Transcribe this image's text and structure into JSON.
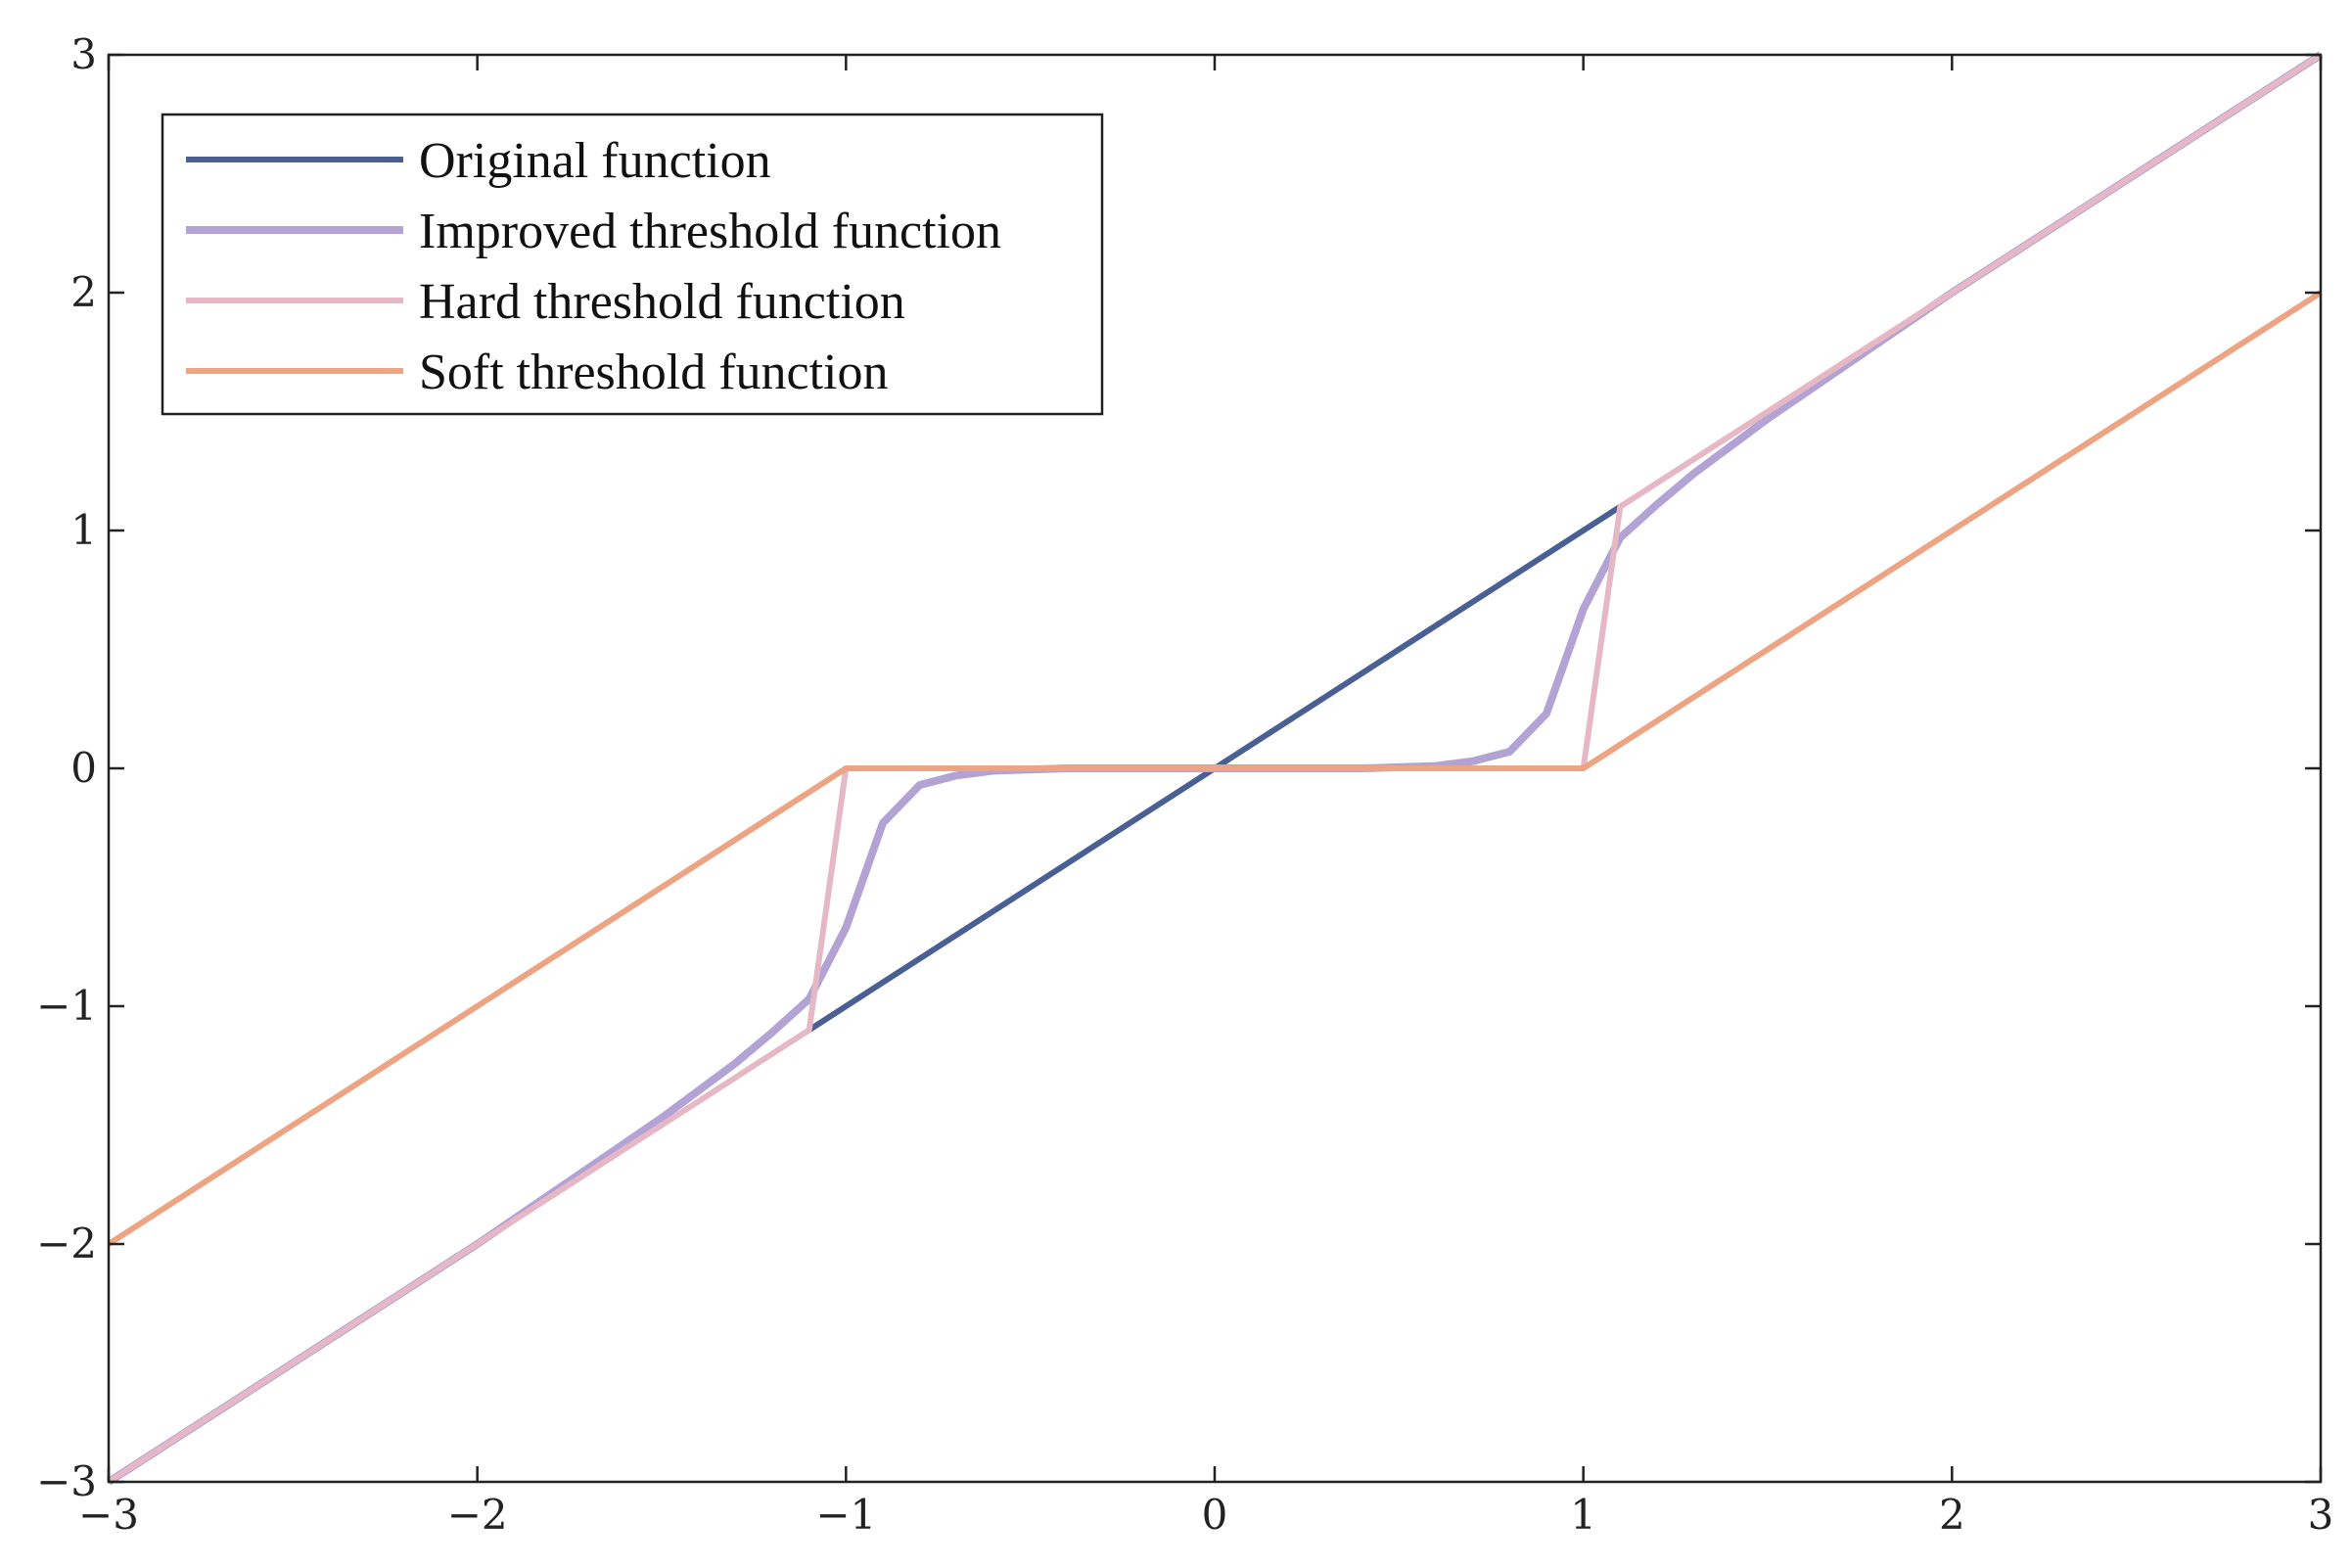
{
  "chart_data": {
    "type": "line",
    "title": "",
    "xlabel": "",
    "ylabel": "",
    "xlim": [
      -3,
      3
    ],
    "ylim": [
      -3,
      3
    ],
    "grid": false,
    "legend_placement": "top-left",
    "x_ticks": [
      {
        "value": -3,
        "label": "−3"
      },
      {
        "value": -2,
        "label": "−2"
      },
      {
        "value": -1,
        "label": "−1"
      },
      {
        "value": 0,
        "label": "0"
      },
      {
        "value": 1,
        "label": "1"
      },
      {
        "value": 2,
        "label": "2"
      },
      {
        "value": 3,
        "label": "3"
      }
    ],
    "y_ticks": [
      {
        "value": -3,
        "label": "−3"
      },
      {
        "value": -2,
        "label": "−2"
      },
      {
        "value": -1,
        "label": "−1"
      },
      {
        "value": 0,
        "label": "0"
      },
      {
        "value": 1,
        "label": "1"
      },
      {
        "value": 2,
        "label": "2"
      },
      {
        "value": 3,
        "label": "3"
      }
    ],
    "series": [
      {
        "name": "Original function",
        "color": "#4a5f93",
        "points": [
          [
            -1.1,
            -1.1
          ],
          [
            1.1,
            1.1
          ]
        ]
      },
      {
        "name": "Improved threshold function",
        "color": "#b3a3d4",
        "points": [
          [
            -3.0,
            -3.0
          ],
          [
            -2.0,
            -2.0
          ],
          [
            -1.5,
            -1.47
          ],
          [
            -1.3,
            -1.24
          ],
          [
            -1.2,
            -1.11
          ],
          [
            -1.1,
            -0.97
          ],
          [
            -1.0,
            -0.67
          ],
          [
            -0.9,
            -0.23
          ],
          [
            -0.8,
            -0.07
          ],
          [
            -0.7,
            -0.03
          ],
          [
            -0.6,
            -0.01
          ],
          [
            -0.4,
            0.0
          ],
          [
            0.0,
            0.0
          ],
          [
            0.4,
            0.0
          ],
          [
            0.6,
            0.01
          ],
          [
            0.7,
            0.03
          ],
          [
            0.8,
            0.07
          ],
          [
            0.9,
            0.23
          ],
          [
            1.0,
            0.67
          ],
          [
            1.1,
            0.97
          ],
          [
            1.2,
            1.11
          ],
          [
            1.3,
            1.24
          ],
          [
            1.5,
            1.47
          ],
          [
            2.0,
            2.0
          ],
          [
            3.0,
            3.0
          ]
        ]
      },
      {
        "name": "Hard threshold function",
        "color": "#e6b8c6",
        "points": [
          [
            -3.0,
            -3.0
          ],
          [
            -1.1,
            -1.1
          ],
          [
            -1.0,
            0.0
          ],
          [
            1.0,
            0.0
          ],
          [
            1.1,
            1.1
          ],
          [
            3.0,
            3.0
          ]
        ]
      },
      {
        "name": "Soft threshold function",
        "color": "#eca483",
        "points": [
          [
            -3.0,
            -2.0
          ],
          [
            -1.0,
            0.0
          ],
          [
            1.0,
            0.0
          ],
          [
            3.0,
            2.0
          ]
        ]
      }
    ],
    "legend": [
      {
        "label": "Original function",
        "color": "#4a5f93"
      },
      {
        "label": "Improved threshold function",
        "color": "#b3a3d4"
      },
      {
        "label": "Hard threshold function",
        "color": "#e6b8c6"
      },
      {
        "label": "Soft threshold function",
        "color": "#eca483"
      }
    ]
  }
}
